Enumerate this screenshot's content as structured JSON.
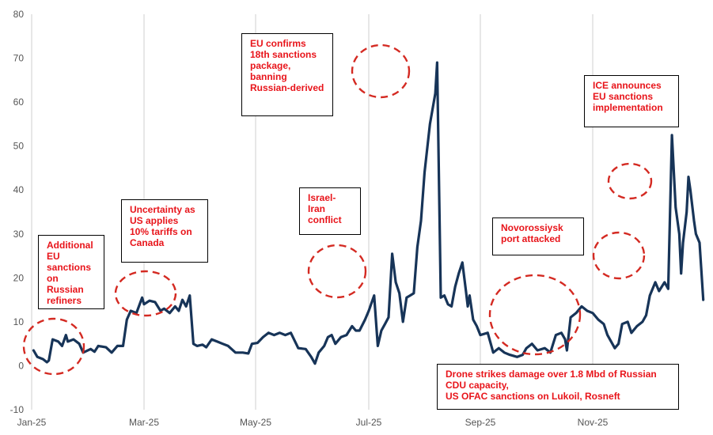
{
  "chart_data": {
    "type": "line",
    "title": "",
    "xlabel": "",
    "ylabel": "",
    "ylim": [
      -10,
      80
    ],
    "yticks": [
      -10,
      0,
      10,
      20,
      30,
      40,
      50,
      60,
      70,
      80
    ],
    "grid": "vertical gridlines at month ticks",
    "x_tick_labels": [
      "Jan-25",
      "Mar-25",
      "May-25",
      "Jul-25",
      "Sep-25",
      "Nov-25"
    ],
    "x_range": [
      "2025-01-01",
      "2025-12-31"
    ],
    "series": [
      {
        "color": "#173458",
        "points": [
          [
            "2025-01-02",
            3.5
          ],
          [
            "2025-01-04",
            2
          ],
          [
            "2025-01-07",
            1.5
          ],
          [
            "2025-01-09",
            0.8
          ],
          [
            "2025-01-10",
            1.2
          ],
          [
            "2025-01-12",
            6
          ],
          [
            "2025-01-15",
            5.5
          ],
          [
            "2025-01-17",
            4.5
          ],
          [
            "2025-01-19",
            7
          ],
          [
            "2025-01-20",
            5.5
          ],
          [
            "2025-01-23",
            6
          ],
          [
            "2025-01-26",
            5
          ],
          [
            "2025-01-28",
            3
          ],
          [
            "2025-02-01",
            3.8
          ],
          [
            "2025-02-03",
            3.2
          ],
          [
            "2025-02-05",
            4.5
          ],
          [
            "2025-02-09",
            4.2
          ],
          [
            "2025-02-12",
            3
          ],
          [
            "2025-02-15",
            4.5
          ],
          [
            "2025-02-18",
            4.5
          ],
          [
            "2025-02-20",
            10.5
          ],
          [
            "2025-02-22",
            12.5
          ],
          [
            "2025-02-25",
            12
          ],
          [
            "2025-02-28",
            15.5
          ],
          [
            "2025-03-01",
            14
          ],
          [
            "2025-03-04",
            14.8
          ],
          [
            "2025-03-07",
            14.5
          ],
          [
            "2025-03-10",
            12.5
          ],
          [
            "2025-03-12",
            13
          ],
          [
            "2025-03-15",
            12
          ],
          [
            "2025-03-18",
            13.5
          ],
          [
            "2025-03-20",
            12.5
          ],
          [
            "2025-03-22",
            15
          ],
          [
            "2025-03-24",
            13.5
          ],
          [
            "2025-03-26",
            16
          ],
          [
            "2025-03-28",
            5
          ],
          [
            "2025-03-30",
            4.5
          ],
          [
            "2025-04-02",
            4.8
          ],
          [
            "2025-04-04",
            4.2
          ],
          [
            "2025-04-07",
            6
          ],
          [
            "2025-04-10",
            5.5
          ],
          [
            "2025-04-13",
            5
          ],
          [
            "2025-04-16",
            4.5
          ],
          [
            "2025-04-20",
            3
          ],
          [
            "2025-04-24",
            3
          ],
          [
            "2025-04-27",
            2.8
          ],
          [
            "2025-04-29",
            5
          ],
          [
            "2025-05-02",
            5.2
          ],
          [
            "2025-05-05",
            6.5
          ],
          [
            "2025-05-08",
            7.5
          ],
          [
            "2025-05-11",
            7
          ],
          [
            "2025-05-14",
            7.5
          ],
          [
            "2025-05-17",
            7
          ],
          [
            "2025-05-20",
            7.5
          ],
          [
            "2025-05-24",
            4
          ],
          [
            "2025-05-28",
            3.8
          ],
          [
            "2025-05-31",
            2
          ],
          [
            "2025-06-02",
            0.5
          ],
          [
            "2025-06-04",
            3
          ],
          [
            "2025-06-07",
            4.5
          ],
          [
            "2025-06-09",
            6.5
          ],
          [
            "2025-06-11",
            7
          ],
          [
            "2025-06-13",
            5
          ],
          [
            "2025-06-16",
            6.5
          ],
          [
            "2025-06-19",
            7
          ],
          [
            "2025-06-22",
            9
          ],
          [
            "2025-06-24",
            8
          ],
          [
            "2025-06-26",
            8
          ],
          [
            "2025-06-29",
            10.5
          ],
          [
            "2025-07-01",
            12.5
          ],
          [
            "2025-07-04",
            16
          ],
          [
            "2025-07-06",
            4.5
          ],
          [
            "2025-07-08",
            8
          ],
          [
            "2025-07-10",
            9.5
          ],
          [
            "2025-07-12",
            11
          ],
          [
            "2025-07-14",
            25.5
          ],
          [
            "2025-07-16",
            19
          ],
          [
            "2025-07-18",
            16.5
          ],
          [
            "2025-07-20",
            10
          ],
          [
            "2025-07-22",
            15.5
          ],
          [
            "2025-07-24",
            16
          ],
          [
            "2025-07-26",
            16.5
          ],
          [
            "2025-07-28",
            27
          ],
          [
            "2025-07-30",
            33
          ],
          [
            "2025-08-01",
            44
          ],
          [
            "2025-08-04",
            55
          ],
          [
            "2025-08-07",
            62
          ],
          [
            "2025-08-08",
            69
          ],
          [
            "2025-08-10",
            15.5
          ],
          [
            "2025-08-12",
            16
          ],
          [
            "2025-08-14",
            14
          ],
          [
            "2025-08-16",
            13.5
          ],
          [
            "2025-08-18",
            18
          ],
          [
            "2025-08-20",
            21
          ],
          [
            "2025-08-22",
            23.5
          ],
          [
            "2025-08-24",
            17
          ],
          [
            "2025-08-25",
            13.5
          ],
          [
            "2025-08-26",
            16
          ],
          [
            "2025-08-28",
            10.5
          ],
          [
            "2025-08-30",
            9
          ],
          [
            "2025-09-01",
            7
          ],
          [
            "2025-09-05",
            7.5
          ],
          [
            "2025-09-08",
            3
          ],
          [
            "2025-09-11",
            4
          ],
          [
            "2025-09-14",
            3
          ],
          [
            "2025-09-17",
            2.5
          ],
          [
            "2025-09-21",
            2
          ],
          [
            "2025-09-24",
            2.5
          ],
          [
            "2025-09-26",
            4
          ],
          [
            "2025-09-29",
            5
          ],
          [
            "2025-10-02",
            3.5
          ],
          [
            "2025-10-06",
            4
          ],
          [
            "2025-10-09",
            3
          ],
          [
            "2025-10-12",
            7
          ],
          [
            "2025-10-15",
            7.5
          ],
          [
            "2025-10-17",
            6
          ],
          [
            "2025-10-18",
            3.5
          ],
          [
            "2025-10-20",
            11
          ],
          [
            "2025-10-23",
            12
          ],
          [
            "2025-10-26",
            13.5
          ],
          [
            "2025-10-29",
            12.5
          ],
          [
            "2025-11-01",
            12
          ],
          [
            "2025-11-04",
            10.5
          ],
          [
            "2025-11-07",
            9.5
          ],
          [
            "2025-11-09",
            7
          ],
          [
            "2025-11-11",
            5.5
          ],
          [
            "2025-11-13",
            4
          ],
          [
            "2025-11-15",
            5
          ],
          [
            "2025-11-17",
            9.5
          ],
          [
            "2025-11-20",
            10
          ],
          [
            "2025-11-22",
            7.5
          ],
          [
            "2025-11-25",
            9
          ],
          [
            "2025-11-28",
            10
          ],
          [
            "2025-11-30",
            11.5
          ],
          [
            "2025-12-02",
            16
          ],
          [
            "2025-12-05",
            19
          ],
          [
            "2025-12-07",
            17
          ],
          [
            "2025-12-10",
            19
          ],
          [
            "2025-12-12",
            17.5
          ],
          [
            "2025-12-14",
            52.5
          ],
          [
            "2025-12-16",
            36
          ],
          [
            "2025-12-18",
            30
          ],
          [
            "2025-12-19",
            21
          ],
          [
            "2025-12-20",
            28
          ],
          [
            "2025-12-22",
            35
          ],
          [
            "2025-12-23",
            43
          ],
          [
            "2025-12-24",
            40
          ],
          [
            "2025-12-26",
            33
          ],
          [
            "2025-12-27",
            30
          ],
          [
            "2025-12-29",
            28
          ],
          [
            "2025-12-31",
            15
          ]
        ]
      }
    ],
    "annotations": [
      {
        "text": "Additional\nEU\nsanctions\non Russian\nrefiners",
        "color": "#e8141a"
      },
      {
        "text": "Uncertainty as\nUS applies\n10% tariffs on\nCanada",
        "color": "#e8141a"
      },
      {
        "text": "EU confirms\n18th sanctions\npackage,\nbanning\nRussian-derived",
        "color": "#e8141a"
      },
      {
        "text": "Israel-\nIran\nconflict",
        "color": "#e8141a"
      },
      {
        "text": "Novorossiysk\nport attacked",
        "color": "#e8141a"
      },
      {
        "text": "ICE announces\nEU sanctions\nimplementation",
        "color": "#e8141a"
      },
      {
        "text": "Drone strikes damage over 1.8 Mbd of Russian\nCDU capacity,\nUS OFAC sanctions on Lukoil, Rosneft",
        "color": "#e8141a"
      }
    ]
  }
}
